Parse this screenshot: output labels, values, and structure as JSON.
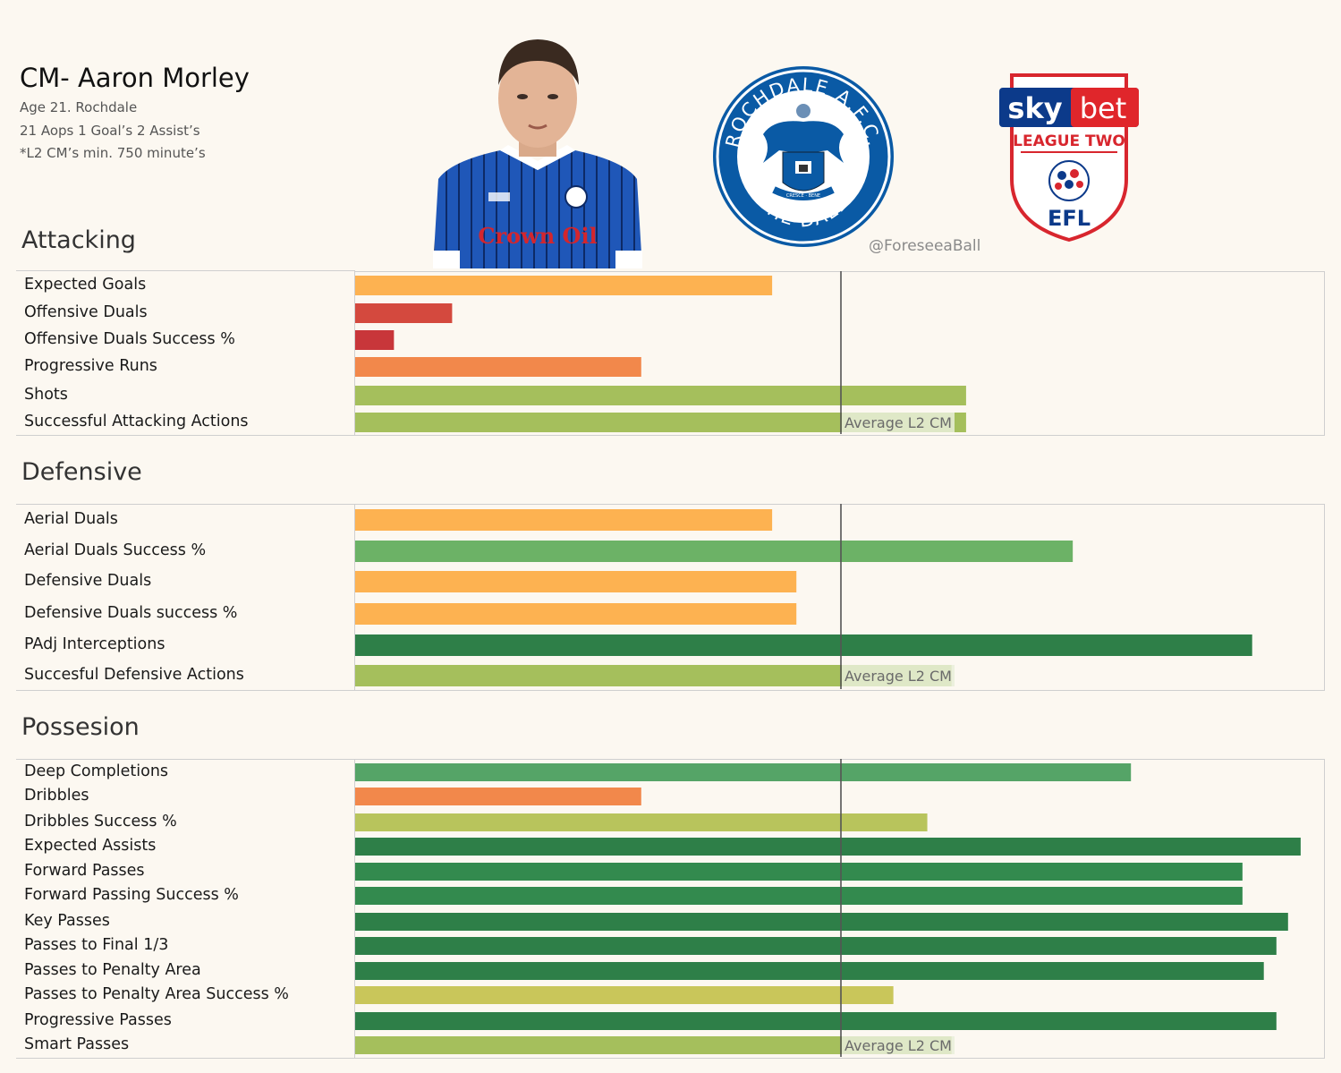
{
  "header": {
    "title": "CM- Aaron Morley",
    "info_lines": [
      "Age 21. Rochdale",
      "21  Aops  1 Goal’s 2 Assist’s",
      "*L2 CM’s min. 750 minute’s"
    ],
    "handle": "@ForeseeaBall"
  },
  "logos": {
    "crest_top_text": "ROCHDALE A.F.C.",
    "crest_bottom_text": "THE DALE",
    "crest_ribbon": "CRESCE · BENE",
    "league_sky": "sky",
    "league_bet": "bet",
    "league_name": "LEAGUE TWO",
    "league_org": "EFL",
    "shirt_sponsor": "Crown Oil"
  },
  "colors": {
    "background": "#fcf8f1",
    "average_line": "#555555",
    "red": "#c8363a",
    "red_light": "#d4493e",
    "orange": "#f2884b",
    "light_orange": "#fdb251",
    "yellow_green": "#c9c65a",
    "lime": "#a5bf5c",
    "green_light": "#6cb266",
    "green": "#55a467",
    "green_dark": "#2e7f48"
  },
  "chart_data": [
    {
      "type": "bar",
      "orientation": "horizontal",
      "title": "Attacking",
      "reference_line": {
        "value": 0.5,
        "label": "Average L2 CM"
      },
      "xlim": [
        0,
        1
      ],
      "categories": [
        "Expected Goals",
        "Offensive Duals",
        "Offensive Duals Success %",
        "Progressive Runs",
        "Shots",
        "Successful Attacking Actions"
      ],
      "values": [
        0.43,
        0.1,
        0.04,
        0.295,
        0.63,
        0.63
      ],
      "colors": [
        "#fdb251",
        "#d4493e",
        "#c8363a",
        "#f2884b",
        "#a5bf5c",
        "#a5bf5c"
      ]
    },
    {
      "type": "bar",
      "orientation": "horizontal",
      "title": "Defensive",
      "reference_line": {
        "value": 0.5,
        "label": "Average L2 CM"
      },
      "xlim": [
        0,
        1
      ],
      "categories": [
        "Aerial Duals",
        "Aerial Duals Success %",
        "Defensive Duals",
        "Defensive Duals success %",
        "PAdj Interceptions",
        "Succesful Defensive Actions"
      ],
      "values": [
        0.43,
        0.74,
        0.455,
        0.455,
        0.925,
        0.615
      ],
      "colors": [
        "#fdb251",
        "#6cb266",
        "#fdb251",
        "#fdb251",
        "#2e7f48",
        "#a5bf5c"
      ]
    },
    {
      "type": "bar",
      "orientation": "horizontal",
      "title": "Possesion",
      "reference_line": {
        "value": 0.5,
        "label": "Average L2 CM"
      },
      "xlim": [
        0,
        1
      ],
      "categories": [
        "Deep Completions",
        "Dribbles",
        "Dribbles Success %",
        "Expected Assists",
        "Forward Passes",
        "Forward Passing Success %",
        "Key Passes",
        "Passes to Final 1/3",
        "Passes to Penalty Area",
        "Passes to Penalty Area Success %",
        "Progressive Passes",
        "Smart Passes"
      ],
      "values": [
        0.8,
        0.295,
        0.59,
        0.975,
        0.915,
        0.915,
        0.962,
        0.95,
        0.937,
        0.555,
        0.95,
        0.615
      ],
      "colors": [
        "#55a467",
        "#f2884b",
        "#b8c45c",
        "#2e7f48",
        "#338a4e",
        "#338a4e",
        "#2e7f48",
        "#2e7f48",
        "#2e7f48",
        "#c9c65a",
        "#2e7f48",
        "#a5bf5c"
      ]
    }
  ]
}
